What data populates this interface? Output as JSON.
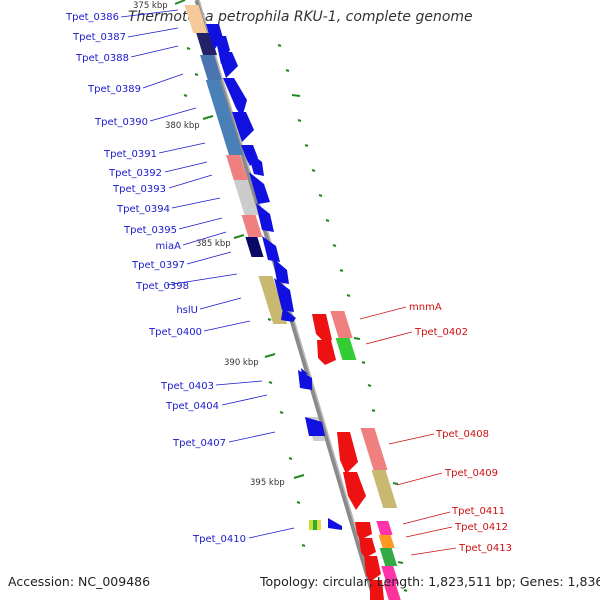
{
  "title": "Thermotoga petrophila RKU-1, complete genome",
  "footer": {
    "accession": "Accession: NC_009486",
    "topology": "Topology: circular; Length: 1,823,511 bp; Genes: 1,836"
  },
  "ticks": [
    "375 kbp",
    "380 kbp",
    "385 kbp",
    "390 kbp",
    "395 kbp"
  ],
  "genes_left": [
    "Tpet_0386",
    "Tpet_0387",
    "Tpet_0388",
    "Tpet_0389",
    "Tpet_0390",
    "Tpet_0391",
    "Tpet_0392",
    "Tpet_0393",
    "Tpet_0394",
    "Tpet_0395",
    "miaA",
    "Tpet_0397",
    "Tpet_0398",
    "hslU",
    "Tpet_0400",
    "Tpet_0403",
    "Tpet_0404",
    "Tpet_0407",
    "Tpet_0410"
  ],
  "genes_right": [
    "mnmA",
    "Tpet_0402",
    "Tpet_0408",
    "Tpet_0409",
    "Tpet_0411",
    "Tpet_0412",
    "Tpet_0413"
  ],
  "colors": {
    "backbone": "#8a8a8a",
    "forward_cds": "#1010e0",
    "reverse_cds": "#ee1111",
    "label_left": "#1a1acc",
    "label_right": "#cc1111",
    "tick": "#228822"
  }
}
